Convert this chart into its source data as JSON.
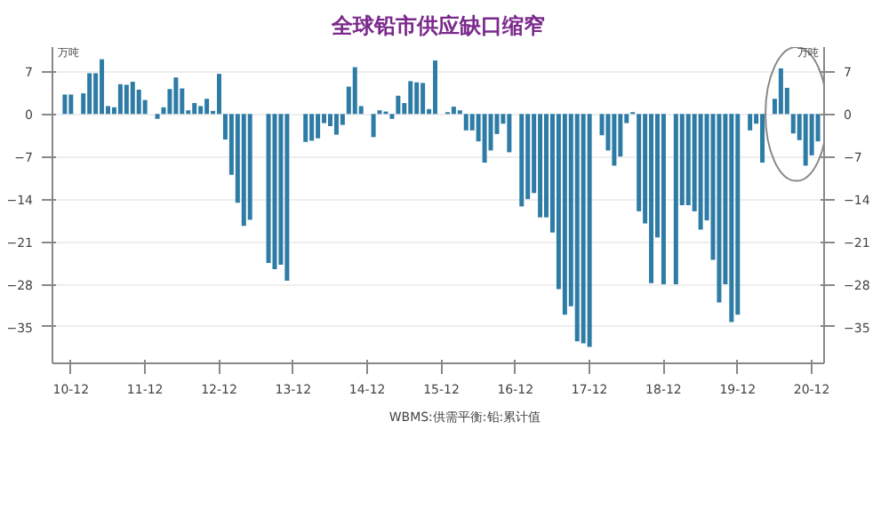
{
  "chart_data": {
    "type": "bar",
    "title": "全球铅市供应缺口缩窄",
    "ylabel": "万吨",
    "y2label": "万吨",
    "x": [
      "2010-11",
      "2010-12",
      "2011-02",
      "2011-03",
      "2011-04",
      "2011-05",
      "2011-06",
      "2011-07",
      "2011-08",
      "2011-09",
      "2011-10",
      "2011-11",
      "2011-12",
      "2012-02",
      "2012-03",
      "2012-04",
      "2012-05",
      "2012-06",
      "2012-07",
      "2012-08",
      "2012-09",
      "2012-10",
      "2012-11",
      "2012-12",
      "2013-01",
      "2013-02",
      "2013-03",
      "2013-04",
      "2013-05",
      "2013-08",
      "2013-09",
      "2013-10",
      "2013-11",
      "2014-02",
      "2014-03",
      "2014-04",
      "2014-05",
      "2014-06",
      "2014-07",
      "2014-08",
      "2014-09",
      "2014-10",
      "2014-11",
      "2015-01",
      "2015-02",
      "2015-03",
      "2015-04",
      "2015-05",
      "2015-06",
      "2015-07",
      "2015-08",
      "2015-09",
      "2015-10",
      "2015-11",
      "2016-01",
      "2016-02",
      "2016-03",
      "2016-04",
      "2016-05",
      "2016-06",
      "2016-07",
      "2016-08",
      "2016-09",
      "2016-10",
      "2016-11",
      "2017-01",
      "2017-02",
      "2017-03",
      "2017-04",
      "2017-05",
      "2017-06",
      "2017-07",
      "2017-08",
      "2017-09",
      "2017-10",
      "2017-11",
      "2017-12",
      "2018-02",
      "2018-03",
      "2018-04",
      "2018-05",
      "2018-06",
      "2018-07",
      "2018-08",
      "2018-09",
      "2018-10",
      "2018-11",
      "2018-12",
      "2019-02",
      "2019-03",
      "2019-04",
      "2019-05",
      "2019-06",
      "2019-07",
      "2019-08",
      "2019-09",
      "2019-10",
      "2019-11",
      "2019-12",
      "2020-02",
      "2020-03",
      "2020-04",
      "2020-06",
      "2020-07",
      "2020-08",
      "2020-09",
      "2020-10",
      "2020-11",
      "2020-12",
      "2021-01"
    ],
    "series": [
      {
        "name": "WBMS:供需平衡:铅:累计值",
        "color": "#2e7ca6",
        "values": [
          3.2,
          3.2,
          3.4,
          6.7,
          6.7,
          9.0,
          1.3,
          1.1,
          4.9,
          4.8,
          5.3,
          4.0,
          2.3,
          -0.8,
          1.1,
          4.1,
          6.0,
          4.2,
          0.6,
          1.8,
          1.3,
          2.5,
          0.5,
          6.6,
          -4.2,
          -10,
          -14.6,
          -18.4,
          -17.4,
          -24.5,
          -25.5,
          -24.8,
          -27.4,
          -4.6,
          -4.4,
          -4.0,
          -1.5,
          -2.0,
          -3.4,
          -1.8,
          4.5,
          7.7,
          1.3,
          -3.8,
          0.6,
          0.4,
          -0.8,
          3.0,
          1.8,
          5.4,
          5.2,
          5.1,
          0.8,
          8.8,
          0.3,
          1.2,
          0.6,
          -2.7,
          -2.7,
          -4.5,
          -8,
          -6,
          -3.3,
          -1.6,
          -6.3,
          -15.2,
          -14,
          -13,
          -17,
          -17,
          -19.5,
          -28.8,
          -33,
          -31.6,
          -37.4,
          -37.7,
          -38.3,
          -3.5,
          -6,
          -8.5,
          -7,
          -1.5,
          0.3,
          -16,
          -18,
          -27.8,
          -20.3,
          -28,
          -28,
          -15,
          -15,
          -16,
          -19,
          -17.5,
          -24,
          -31,
          -28,
          -34.2,
          -33,
          -2.7,
          -1.6,
          -8,
          2.5,
          7.5,
          4.3,
          -3.2,
          -4.3,
          -8.5,
          -6.8,
          -4.5
        ]
      }
    ],
    "xlim": [
      "2010-09",
      "2021-02"
    ],
    "xticks": [
      {
        "value": "2010-12",
        "label": "10-12"
      },
      {
        "value": "2011-12",
        "label": "11-12"
      },
      {
        "value": "2012-12",
        "label": "12-12"
      },
      {
        "value": "2013-12",
        "label": "13-12"
      },
      {
        "value": "2014-12",
        "label": "14-12"
      },
      {
        "value": "2015-12",
        "label": "15-12"
      },
      {
        "value": "2016-12",
        "label": "16-12"
      },
      {
        "value": "2017-12",
        "label": "17-12"
      },
      {
        "value": "2018-12",
        "label": "18-12"
      },
      {
        "value": "2019-12",
        "label": "19-12"
      },
      {
        "value": "2020-12",
        "label": "20-12"
      }
    ],
    "ylim": [
      -41,
      11
    ],
    "yticks": [
      -35,
      -28,
      -21,
      -14,
      -7,
      0,
      7
    ],
    "y2lim": [
      -41,
      11
    ],
    "y2ticks": [
      -35,
      -28,
      -21,
      -14,
      -7,
      0,
      7
    ],
    "grid": "y",
    "legend": "bottom"
  }
}
